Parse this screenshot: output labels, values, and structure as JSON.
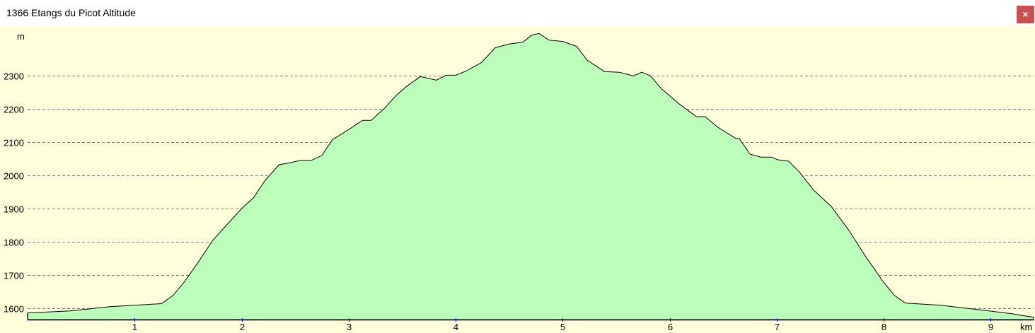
{
  "window": {
    "title": "1366 Etangs du Picot Altitude",
    "close_label": "×",
    "close_icon": "close-icon"
  },
  "colors": {
    "background": "#FFFFDC",
    "fill": "#BBFFBB",
    "line": "#000000",
    "grid": "#808080",
    "x_tick_marks": "#0000FF",
    "close_button": "#C9504F"
  },
  "chart_data": {
    "type": "area",
    "title": "",
    "xlabel": "km",
    "ylabel": "m",
    "xlim": [
      0,
      9.4
    ],
    "ylim": [
      1565,
      2450
    ],
    "grid": "horizontal dashed",
    "x_ticks": [
      1,
      2,
      3,
      4,
      5,
      6,
      7,
      8,
      9
    ],
    "y_ticks": [
      1600,
      1700,
      1800,
      1900,
      2000,
      2100,
      2200,
      2300
    ],
    "x": [
      0,
      0.4,
      0.77,
      1.0,
      1.25,
      1.36,
      1.46,
      1.59,
      1.73,
      2.0,
      2.11,
      2.22,
      2.35,
      2.45,
      2.55,
      2.65,
      2.75,
      2.85,
      3.0,
      3.13,
      3.21,
      3.34,
      3.44,
      3.54,
      3.67,
      3.82,
      3.91,
      4.0,
      4.1,
      4.24,
      4.37,
      4.5,
      4.63,
      4.71,
      4.78,
      4.87,
      5.0,
      5.13,
      5.23,
      5.39,
      5.53,
      5.66,
      5.74,
      5.82,
      5.92,
      6.09,
      6.25,
      6.33,
      6.45,
      6.62,
      6.65,
      6.75,
      6.85,
      6.95,
      7.01,
      7.11,
      7.21,
      7.34,
      7.51,
      7.67,
      7.84,
      8.0,
      8.1,
      8.2,
      8.53,
      8.86,
      9.19,
      9.4
    ],
    "y": [
      1585,
      1591,
      1604,
      1608,
      1613,
      1638,
      1677,
      1736,
      1804,
      1900,
      1932,
      1985,
      2032,
      2038,
      2045,
      2045,
      2060,
      2108,
      2138,
      2166,
      2166,
      2204,
      2240,
      2268,
      2298,
      2287,
      2302,
      2302,
      2315,
      2340,
      2385,
      2396,
      2402,
      2423,
      2428,
      2408,
      2404,
      2389,
      2347,
      2313,
      2311,
      2300,
      2311,
      2300,
      2262,
      2215,
      2177,
      2177,
      2145,
      2111,
      2111,
      2064,
      2055,
      2055,
      2047,
      2043,
      2011,
      1957,
      1906,
      1836,
      1751,
      1677,
      1638,
      1615,
      1608,
      1596,
      1583,
      1572
    ]
  }
}
